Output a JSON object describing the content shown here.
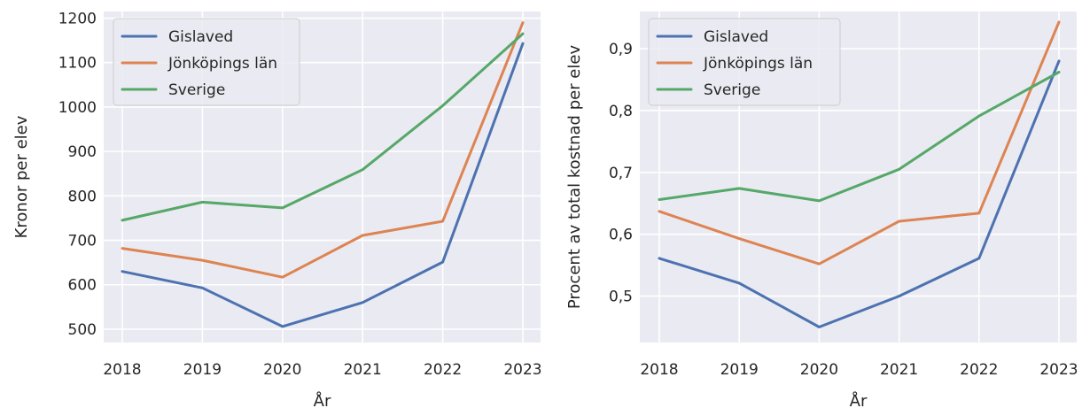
{
  "chart_data": [
    {
      "type": "line",
      "xlabel": "År",
      "ylabel": "Kronor per elev",
      "categories": [
        "2018",
        "2019",
        "2020",
        "2021",
        "2022",
        "2023"
      ],
      "ylim": [
        470,
        1215
      ],
      "yticks": [
        500,
        600,
        700,
        800,
        900,
        1000,
        1100,
        1200
      ],
      "ytick_labels": [
        "500",
        "600",
        "700",
        "800",
        "900",
        "1000",
        "1100",
        "1200"
      ],
      "grid": true,
      "legend_position": "upper-left",
      "series": [
        {
          "name": "Gislaved",
          "color": "#4c72b0",
          "values": [
            630,
            593,
            506,
            560,
            651,
            1143
          ]
        },
        {
          "name": "Jönköpings län",
          "color": "#dd8452",
          "values": [
            682,
            655,
            617,
            711,
            743,
            1190
          ]
        },
        {
          "name": "Sverige",
          "color": "#55a868",
          "values": [
            745,
            786,
            773,
            859,
            1003,
            1165
          ]
        }
      ]
    },
    {
      "type": "line",
      "xlabel": "År",
      "ylabel": "Procent av total kostnad per elev",
      "categories": [
        "2018",
        "2019",
        "2020",
        "2021",
        "2022",
        "2023"
      ],
      "ylim": [
        0.425,
        0.96
      ],
      "yticks": [
        0.5,
        0.6,
        0.7,
        0.8,
        0.9
      ],
      "ytick_labels": [
        "0,5",
        "0,6",
        "0,7",
        "0,8",
        "0,9"
      ],
      "grid": true,
      "legend_position": "upper-left",
      "series": [
        {
          "name": "Gislaved",
          "color": "#4c72b0",
          "values": [
            0.561,
            0.521,
            0.45,
            0.5,
            0.561,
            0.88
          ]
        },
        {
          "name": "Jönköpings län",
          "color": "#dd8452",
          "values": [
            0.637,
            0.593,
            0.552,
            0.621,
            0.634,
            0.943
          ]
        },
        {
          "name": "Sverige",
          "color": "#55a868",
          "values": [
            0.656,
            0.674,
            0.654,
            0.705,
            0.791,
            0.862
          ]
        }
      ]
    }
  ]
}
